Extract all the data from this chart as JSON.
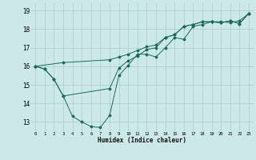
{
  "title": "",
  "xlabel": "Humidex (Indice chaleur)",
  "ylabel": "",
  "bg_color": "#cce8e8",
  "grid_color": "#aacccc",
  "line_color": "#1a6b5a",
  "xlim": [
    -0.5,
    23.5
  ],
  "ylim": [
    12.5,
    19.4
  ],
  "xticks": [
    0,
    1,
    2,
    3,
    4,
    5,
    6,
    7,
    8,
    9,
    10,
    11,
    12,
    13,
    14,
    15,
    16,
    17,
    18,
    19,
    20,
    21,
    22,
    23
  ],
  "yticks": [
    13,
    14,
    15,
    16,
    17,
    18,
    19
  ],
  "line1_x": [
    0,
    1,
    2,
    3,
    4,
    5,
    6,
    7,
    8,
    9,
    10,
    11,
    12,
    13,
    14,
    15,
    16,
    17,
    18,
    19,
    20,
    21,
    22,
    23
  ],
  "line1_y": [
    16.0,
    15.85,
    15.3,
    14.4,
    13.3,
    13.0,
    12.75,
    12.7,
    13.35,
    15.5,
    16.05,
    16.65,
    16.65,
    16.5,
    17.0,
    17.55,
    17.45,
    18.15,
    18.25,
    18.4,
    18.4,
    18.35,
    18.45,
    18.85
  ],
  "line2_x": [
    0,
    1,
    2,
    3,
    8,
    9,
    10,
    11,
    12,
    13,
    14,
    15,
    16,
    17,
    18,
    19,
    20,
    21,
    22,
    23
  ],
  "line2_y": [
    16.0,
    15.85,
    15.3,
    14.4,
    14.8,
    15.9,
    16.3,
    16.55,
    16.9,
    17.0,
    17.55,
    17.7,
    18.15,
    18.25,
    18.4,
    18.4,
    18.35,
    18.45,
    18.3,
    18.85
  ],
  "line3_x": [
    0,
    3,
    8,
    9,
    10,
    11,
    12,
    13,
    14,
    15,
    16,
    17,
    18,
    19,
    20,
    21,
    22,
    23
  ],
  "line3_y": [
    16.0,
    16.2,
    16.35,
    16.5,
    16.65,
    16.85,
    17.05,
    17.15,
    17.55,
    17.7,
    18.15,
    18.25,
    18.4,
    18.4,
    18.35,
    18.45,
    18.3,
    18.85
  ]
}
